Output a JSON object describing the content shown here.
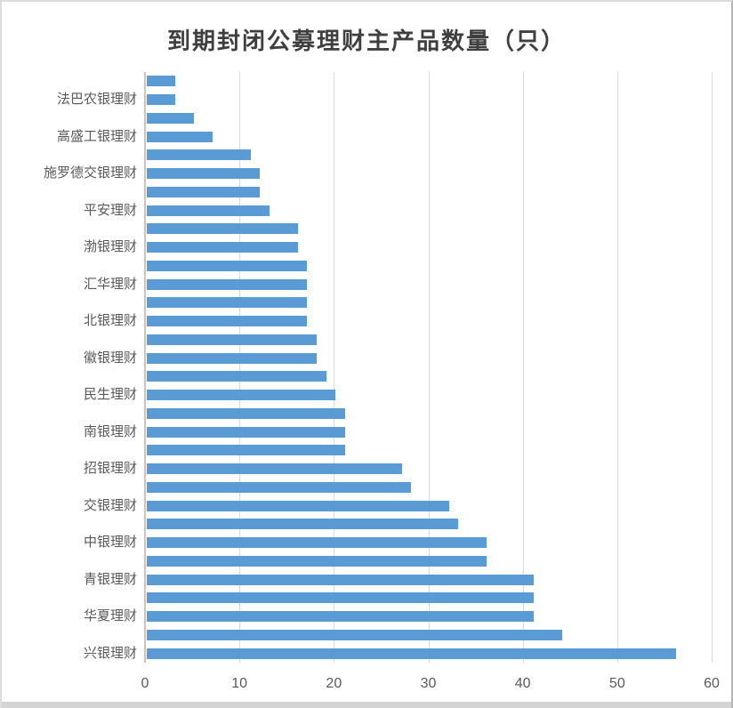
{
  "chart_data": {
    "type": "bar",
    "orientation": "horizontal",
    "title": "到期封闭公募理财主产品数量（只）",
    "xlabel": "",
    "ylabel": "",
    "xlim": [
      0,
      60
    ],
    "x_ticks": [
      0,
      10,
      20,
      30,
      40,
      50,
      60
    ],
    "grid": "vertical-gridlines-on",
    "legend": "none",
    "bar_count": 32,
    "values": [
      3,
      3,
      5,
      7,
      11,
      12,
      12,
      13,
      16,
      16,
      17,
      17,
      17,
      17,
      18,
      18,
      19,
      20,
      21,
      21,
      21,
      27,
      28,
      32,
      33,
      36,
      36,
      41,
      41,
      41,
      44,
      56
    ],
    "axis_label_note": "only every second bar is labeled (labels align with bars 2,4,...,32 from top)",
    "labels": [
      "法巴农银理财",
      "高盛工银理财",
      "施罗德交银理财",
      "平安理财",
      "渤银理财",
      "汇华理财",
      "北银理财",
      "徽银理财",
      "民生理财",
      "南银理财",
      "招银理财",
      "交银理财",
      "中银理财",
      "青银理财",
      "华夏理财",
      "兴银理财"
    ],
    "labeled_values": {
      "法巴农银理财": 3,
      "高盛工银理财": 7,
      "施罗德交银理财": 12,
      "平安理财": 13,
      "渤银理财": 16,
      "汇华理财": 17,
      "北银理财": 17,
      "徽银理财": 18,
      "民生理财": 20,
      "南银理财": 21,
      "招银理财": 27,
      "交银理财": 32,
      "中银理财": 36,
      "青银理财": 41,
      "华夏理财": 41,
      "兴银理财": 56
    },
    "colors": {
      "bar": "#5B9BD5",
      "gridline": "#D9D9D9",
      "axis_line": "#C6C6C6",
      "tick_text": "#595959",
      "category_text": "#595959",
      "title_text": "#3F3F3F"
    }
  }
}
